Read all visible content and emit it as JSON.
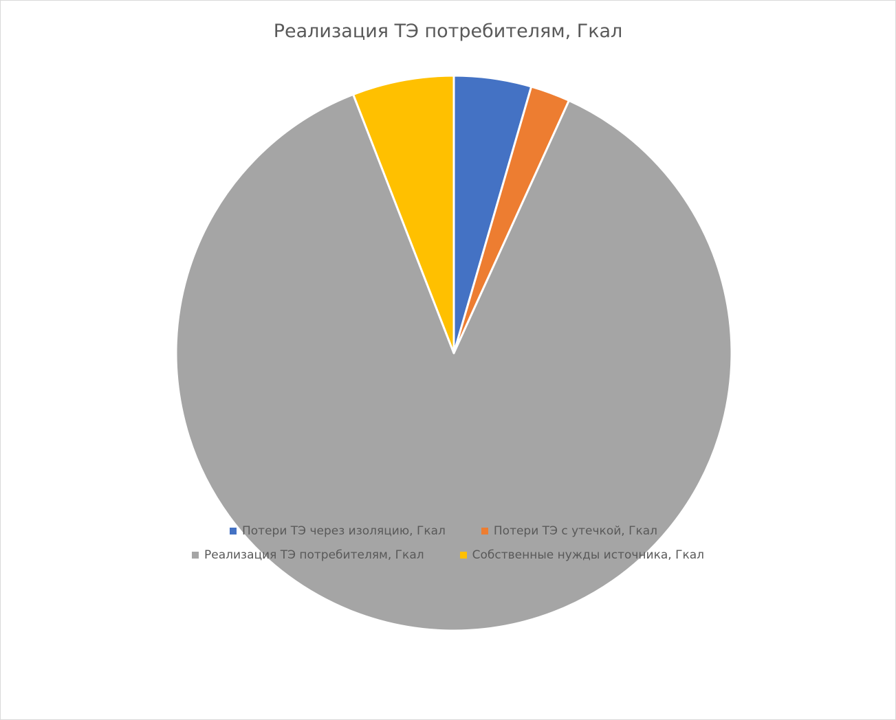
{
  "chart_data": {
    "type": "pie",
    "title": "Реализация ТЭ потребителям, Гкал",
    "categories": [
      "Потери ТЭ через изоляцию, Гкал",
      "Потери ТЭ с утечкой, Гкал",
      "Реализация ТЭ потребителям, Гкал",
      "Собственные нужды источника, Гкал"
    ],
    "values": [
      4.5,
      2.3,
      87.3,
      5.9
    ],
    "value_unit": "percent of total",
    "colors": [
      "#4472c4",
      "#ed7d31",
      "#a5a5a5",
      "#ffc000"
    ],
    "legend_position": "bottom"
  }
}
